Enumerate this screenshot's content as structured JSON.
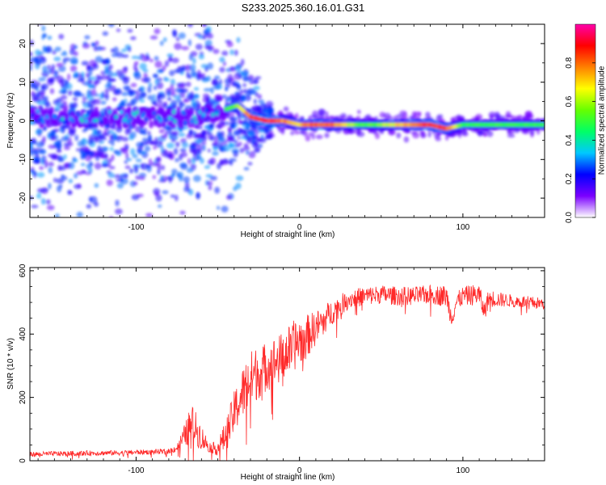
{
  "title": "S233.2025.360.16.01.G31",
  "chart_data": [
    {
      "type": "heatmap",
      "name": "spectrogram",
      "xlabel": "Height of straight line (km)",
      "ylabel": "Frequency (Hz)",
      "xlim": [
        -165,
        150
      ],
      "ylim": [
        -25,
        25
      ],
      "xticks": [
        -100,
        0,
        100
      ],
      "yticks": [
        -20,
        -10,
        0,
        10,
        20
      ],
      "tick_labels_x": [
        "-100",
        "0",
        "100"
      ],
      "tick_labels_y": [
        "-20",
        "-10",
        "0",
        "10",
        "20"
      ],
      "colorbar": {
        "label": "Normalized spectral amplitude",
        "range": [
          0,
          1
        ],
        "ticks": [
          0.0,
          0.2,
          0.4,
          0.6,
          0.8
        ],
        "tick_labels": [
          "0.0",
          "0.2",
          "0.4",
          "0.6",
          "0.8"
        ],
        "colors": [
          "#ffffff",
          "#7b00ff",
          "#0000ff",
          "#00c8ff",
          "#00ff66",
          "#66ff00",
          "#ffff00",
          "#ff8000",
          "#ff0000",
          "#ff00aa"
        ]
      },
      "ridge": {
        "x": [
          -165,
          -140,
          -120,
          -100,
          -80,
          -60,
          -45,
          -38,
          -30,
          -20,
          -10,
          0,
          10,
          20,
          40,
          60,
          80,
          90,
          100,
          120,
          150
        ],
        "freq": [
          1,
          1,
          1,
          1,
          1,
          1,
          3,
          4,
          1,
          0,
          0,
          -1,
          -1,
          -1,
          -1,
          -1,
          -1,
          -2,
          -1,
          -1,
          -1
        ],
        "amplitude": [
          0.3,
          0.3,
          0.3,
          0.3,
          0.3,
          0.35,
          0.5,
          0.6,
          0.85,
          0.9,
          0.8,
          0.7,
          0.85,
          0.8,
          0.5,
          0.7,
          0.9,
          0.85,
          0.5,
          0.5,
          0.5
        ]
      }
    },
    {
      "type": "line",
      "name": "snr",
      "xlabel": "Height of straight line (km)",
      "ylabel": "SNR (10 * v/v)",
      "xlim": [
        -165,
        150
      ],
      "ylim": [
        0,
        610
      ],
      "xticks": [
        -100,
        0,
        100
      ],
      "yticks": [
        0,
        200,
        400,
        600
      ],
      "tick_labels_x": [
        "-100",
        "0",
        "100"
      ],
      "tick_labels_y": [
        "0",
        "200",
        "400",
        "600"
      ],
      "color": "#ff2a2a",
      "series": [
        {
          "name": "SNR",
          "x": [
            -165,
            -150,
            -130,
            -110,
            -90,
            -80,
            -75,
            -70,
            -66,
            -62,
            -58,
            -54,
            -50,
            -45,
            -40,
            -36,
            -32,
            -28,
            -24,
            -20,
            -16,
            -12,
            -8,
            -4,
            0,
            4,
            8,
            12,
            16,
            20,
            25,
            30,
            40,
            50,
            60,
            70,
            80,
            90,
            93,
            96,
            100,
            110,
            113,
            116,
            120,
            130,
            140,
            150
          ],
          "values": [
            20,
            22,
            24,
            25,
            28,
            30,
            40,
            80,
            120,
            90,
            60,
            40,
            40,
            80,
            150,
            200,
            240,
            270,
            280,
            300,
            310,
            320,
            340,
            360,
            380,
            390,
            410,
            430,
            450,
            470,
            490,
            510,
            520,
            525,
            520,
            520,
            525,
            520,
            450,
            500,
            520,
            525,
            470,
            515,
            510,
            505,
            500,
            495
          ],
          "noise_amplitude": [
            8,
            8,
            8,
            8,
            8,
            8,
            12,
            40,
            60,
            50,
            30,
            15,
            25,
            50,
            70,
            80,
            90,
            90,
            80,
            80,
            80,
            80,
            80,
            80,
            80,
            70,
            60,
            50,
            45,
            40,
            35,
            30,
            30,
            30,
            30,
            30,
            30,
            35,
            30,
            30,
            30,
            35,
            30,
            30,
            25,
            20,
            20,
            20
          ]
        }
      ]
    }
  ]
}
